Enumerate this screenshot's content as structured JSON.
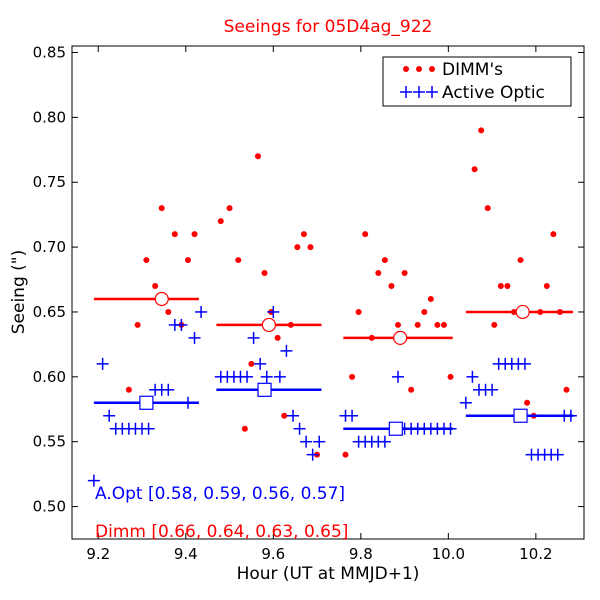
{
  "chart_data": {
    "type": "scatter",
    "title": "Seeings for 05D4ag_922",
    "xlabel": "Hour (UT at MMJD+1)",
    "ylabel": "Seeing (\")",
    "xlim": [
      9.14,
      10.31
    ],
    "ylim": [
      0.475,
      0.855
    ],
    "xticks": [
      9.2,
      9.4,
      9.6,
      9.8,
      10.0,
      10.2
    ],
    "xtick_labels": [
      "9.2",
      "9.4",
      "9.6",
      "9.8",
      "10.0",
      "10.2"
    ],
    "yticks": [
      0.5,
      0.55,
      0.6,
      0.65,
      0.7,
      0.75,
      0.8,
      0.85
    ],
    "ytick_labels": [
      "0.50",
      "0.55",
      "0.60",
      "0.65",
      "0.70",
      "0.75",
      "0.80",
      "0.85"
    ],
    "grid": false,
    "legend_position": "top-right",
    "colors": {
      "dimm": "#ff0000",
      "aopt": "#0000ff"
    },
    "series": [
      {
        "name": "DIMM's",
        "marker": "dot",
        "points": [
          [
            9.27,
            0.59
          ],
          [
            9.29,
            0.64
          ],
          [
            9.31,
            0.69
          ],
          [
            9.33,
            0.67
          ],
          [
            9.345,
            0.73
          ],
          [
            9.36,
            0.65
          ],
          [
            9.375,
            0.71
          ],
          [
            9.39,
            0.64
          ],
          [
            9.405,
            0.69
          ],
          [
            9.42,
            0.71
          ],
          [
            9.48,
            0.72
          ],
          [
            9.5,
            0.73
          ],
          [
            9.52,
            0.69
          ],
          [
            9.535,
            0.56
          ],
          [
            9.55,
            0.61
          ],
          [
            9.565,
            0.77
          ],
          [
            9.58,
            0.68
          ],
          [
            9.595,
            0.65
          ],
          [
            9.61,
            0.63
          ],
          [
            9.625,
            0.57
          ],
          [
            9.64,
            0.64
          ],
          [
            9.655,
            0.7
          ],
          [
            9.67,
            0.71
          ],
          [
            9.685,
            0.7
          ],
          [
            9.7,
            0.54
          ],
          [
            9.765,
            0.54
          ],
          [
            9.78,
            0.6
          ],
          [
            9.795,
            0.65
          ],
          [
            9.81,
            0.71
          ],
          [
            9.825,
            0.63
          ],
          [
            9.84,
            0.68
          ],
          [
            9.855,
            0.69
          ],
          [
            9.87,
            0.67
          ],
          [
            9.885,
            0.64
          ],
          [
            9.9,
            0.68
          ],
          [
            9.915,
            0.59
          ],
          [
            9.93,
            0.64
          ],
          [
            9.945,
            0.65
          ],
          [
            9.96,
            0.66
          ],
          [
            9.975,
            0.64
          ],
          [
            9.99,
            0.64
          ],
          [
            10.005,
            0.6
          ],
          [
            10.06,
            0.76
          ],
          [
            10.075,
            0.79
          ],
          [
            10.09,
            0.73
          ],
          [
            10.105,
            0.64
          ],
          [
            10.12,
            0.67
          ],
          [
            10.135,
            0.67
          ],
          [
            10.15,
            0.65
          ],
          [
            10.165,
            0.69
          ],
          [
            10.18,
            0.58
          ],
          [
            10.195,
            0.57
          ],
          [
            10.21,
            0.65
          ],
          [
            10.225,
            0.67
          ],
          [
            10.24,
            0.71
          ],
          [
            10.255,
            0.65
          ],
          [
            10.27,
            0.59
          ]
        ]
      },
      {
        "name": "Active Optic",
        "marker": "plus",
        "points": [
          [
            9.19,
            0.52
          ],
          [
            9.21,
            0.61
          ],
          [
            9.225,
            0.57
          ],
          [
            9.24,
            0.56
          ],
          [
            9.255,
            0.56
          ],
          [
            9.27,
            0.56
          ],
          [
            9.285,
            0.56
          ],
          [
            9.3,
            0.56
          ],
          [
            9.315,
            0.56
          ],
          [
            9.33,
            0.59
          ],
          [
            9.345,
            0.59
          ],
          [
            9.36,
            0.59
          ],
          [
            9.375,
            0.64
          ],
          [
            9.39,
            0.64
          ],
          [
            9.405,
            0.58
          ],
          [
            9.42,
            0.63
          ],
          [
            9.435,
            0.65
          ],
          [
            9.48,
            0.6
          ],
          [
            9.495,
            0.6
          ],
          [
            9.51,
            0.6
          ],
          [
            9.525,
            0.6
          ],
          [
            9.54,
            0.6
          ],
          [
            9.555,
            0.63
          ],
          [
            9.57,
            0.61
          ],
          [
            9.585,
            0.6
          ],
          [
            9.6,
            0.65
          ],
          [
            9.615,
            0.6
          ],
          [
            9.63,
            0.62
          ],
          [
            9.645,
            0.57
          ],
          [
            9.66,
            0.56
          ],
          [
            9.675,
            0.55
          ],
          [
            9.69,
            0.54
          ],
          [
            9.705,
            0.55
          ],
          [
            9.765,
            0.57
          ],
          [
            9.78,
            0.57
          ],
          [
            9.795,
            0.55
          ],
          [
            9.81,
            0.55
          ],
          [
            9.825,
            0.55
          ],
          [
            9.84,
            0.55
          ],
          [
            9.855,
            0.55
          ],
          [
            9.87,
            0.56
          ],
          [
            9.885,
            0.6
          ],
          [
            9.9,
            0.56
          ],
          [
            9.915,
            0.56
          ],
          [
            9.93,
            0.56
          ],
          [
            9.945,
            0.56
          ],
          [
            9.96,
            0.56
          ],
          [
            9.975,
            0.56
          ],
          [
            9.99,
            0.56
          ],
          [
            10.005,
            0.56
          ],
          [
            10.04,
            0.58
          ],
          [
            10.055,
            0.6
          ],
          [
            10.07,
            0.59
          ],
          [
            10.085,
            0.59
          ],
          [
            10.1,
            0.59
          ],
          [
            10.115,
            0.61
          ],
          [
            10.13,
            0.61
          ],
          [
            10.145,
            0.61
          ],
          [
            10.16,
            0.61
          ],
          [
            10.175,
            0.61
          ],
          [
            10.19,
            0.54
          ],
          [
            10.205,
            0.54
          ],
          [
            10.22,
            0.54
          ],
          [
            10.235,
            0.54
          ],
          [
            10.25,
            0.54
          ],
          [
            10.265,
            0.57
          ],
          [
            10.28,
            0.57
          ]
        ]
      }
    ],
    "block_medians": {
      "dimm": [
        {
          "x_start": 9.19,
          "x_end": 9.43,
          "value": 0.66,
          "marker_x": 9.345
        },
        {
          "x_start": 9.47,
          "x_end": 9.71,
          "value": 0.64,
          "marker_x": 9.59
        },
        {
          "x_start": 9.76,
          "x_end": 10.01,
          "value": 0.63,
          "marker_x": 9.89
        },
        {
          "x_start": 10.04,
          "x_end": 10.285,
          "value": 0.65,
          "marker_x": 10.17
        }
      ],
      "aopt": [
        {
          "x_start": 9.19,
          "x_end": 9.43,
          "value": 0.58,
          "marker_x": 9.31
        },
        {
          "x_start": 9.47,
          "x_end": 9.71,
          "value": 0.59,
          "marker_x": 9.58
        },
        {
          "x_start": 9.76,
          "x_end": 10.01,
          "value": 0.56,
          "marker_x": 9.88
        },
        {
          "x_start": 10.04,
          "x_end": 10.285,
          "value": 0.57,
          "marker_x": 10.165
        }
      ]
    },
    "annotations": {
      "aopt_summary": "A.Opt [0.58, 0.59, 0.56, 0.57]",
      "dimm_summary": "Dimm [0.66, 0.64, 0.63, 0.65]"
    }
  }
}
